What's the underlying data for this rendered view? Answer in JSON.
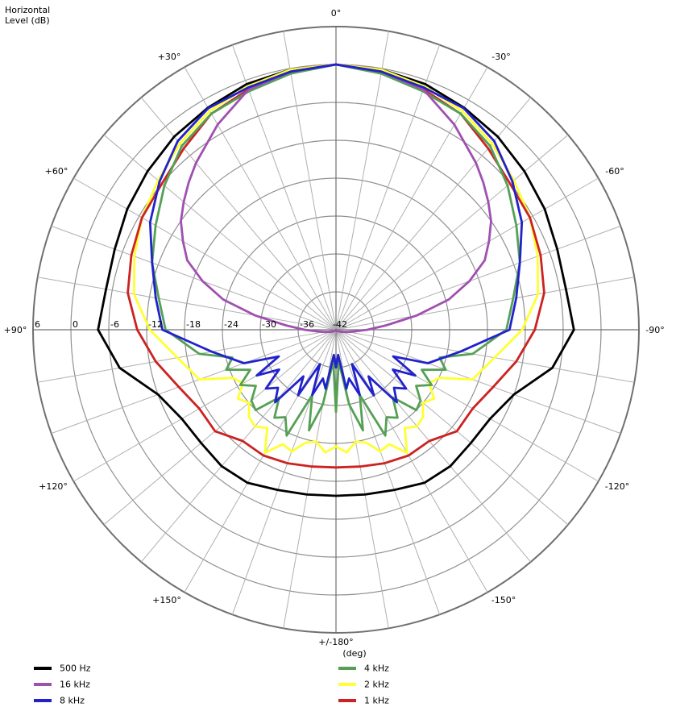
{
  "chart_data": {
    "type": "polar",
    "title": "Horizontal",
    "ylabel": "Level  (dB)",
    "xlabel": "(deg)",
    "r_range": [
      -42,
      6
    ],
    "r_ticks": [
      "6",
      "0",
      "-6",
      "-12",
      "-18",
      "-24",
      "-30",
      "-36",
      "-42"
    ],
    "angle_labels": [
      {
        "deg": 0,
        "label": "0°"
      },
      {
        "deg": 30,
        "label": "-30°"
      },
      {
        "deg": 60,
        "label": "-60°"
      },
      {
        "deg": 90,
        "label": "-90°"
      },
      {
        "deg": 120,
        "label": "-120°"
      },
      {
        "deg": 150,
        "label": "-150°"
      },
      {
        "deg": 180,
        "label": "+/-180°"
      },
      {
        "deg": 210,
        "label": "+150°"
      },
      {
        "deg": 240,
        "label": "+120°"
      },
      {
        "deg": 270,
        "label": "+90°"
      },
      {
        "deg": 300,
        "label": "+60°"
      },
      {
        "deg": 330,
        "label": "+30°"
      }
    ],
    "grid": true,
    "legend_position": "bottom",
    "series": [
      {
        "name": "500 Hz",
        "color": "#000000",
        "angles": [
          0,
          10,
          20,
          30,
          40,
          50,
          60,
          70,
          80,
          90,
          100,
          110,
          120,
          130,
          140,
          150,
          160,
          170,
          180
        ],
        "values": [
          0,
          -0.2,
          -0.6,
          -1.4,
          -2.1,
          -3.0,
          -3.8,
          -4.7,
          -5.0,
          -4.3,
          -7.2,
          -12.0,
          -13.8,
          -14.1,
          -13.8,
          -14.0,
          -15.0,
          -15.5,
          -15.7
        ]
      },
      {
        "name": "8 kHz",
        "color": "#2222cc",
        "angles": [
          0,
          10,
          20,
          30,
          40,
          50,
          60,
          70,
          80,
          90,
          100,
          110,
          115,
          120,
          125,
          130,
          135,
          140,
          145,
          150,
          155,
          160,
          165,
          170,
          175,
          180
        ],
        "values": [
          0,
          -0.5,
          -1.2,
          -1.5,
          -3.0,
          -5.5,
          -8.0,
          -11.0,
          -13.0,
          -14.5,
          -22.0,
          -26.5,
          -32.0,
          -27.5,
          -31.0,
          -27.5,
          -29.0,
          -27.0,
          -33.0,
          -30.0,
          -36.0,
          -31.0,
          -34.0,
          -32.5,
          -38.0,
          -36.0
        ]
      },
      {
        "name": "16 kHz",
        "color": "#a050b0",
        "angles": [
          0,
          10,
          20,
          30,
          40,
          45,
          50,
          55,
          60,
          65,
          70,
          75,
          80,
          85,
          90,
          95,
          100,
          110,
          120,
          150,
          180
        ],
        "values": [
          0,
          -0.5,
          -1.5,
          -4.5,
          -7.5,
          -9.0,
          -10.5,
          -12.0,
          -14.0,
          -16.0,
          -19.5,
          -23.5,
          -29.0,
          -34.0,
          -37.0,
          -39.0,
          -40.0,
          -41.0,
          -41.5,
          -41.8,
          -42.0
        ]
      },
      {
        "name": "4 kHz",
        "color": "#55a055",
        "angles": [
          0,
          10,
          20,
          30,
          40,
          50,
          60,
          70,
          80,
          90,
          100,
          105,
          110,
          115,
          120,
          125,
          130,
          135,
          140,
          145,
          150,
          155,
          160,
          165,
          170,
          175,
          180
        ],
        "values": [
          0,
          -0.8,
          -1.8,
          -2.5,
          -4.0,
          -6.5,
          -9.0,
          -11.0,
          -13.5,
          -15.0,
          -20.0,
          -25.0,
          -23.5,
          -27.0,
          -24.5,
          -26.5,
          -24.5,
          -24.0,
          -28.0,
          -25.0,
          -26.0,
          -23.5,
          -31.0,
          -25.5,
          -30.0,
          -37.0,
          -29.0
        ]
      },
      {
        "name": "2 kHz",
        "color": "#ffff33",
        "angles": [
          0,
          10,
          20,
          30,
          40,
          50,
          60,
          70,
          80,
          90,
          100,
          110,
          115,
          120,
          125,
          130,
          135,
          140,
          145,
          150,
          155,
          160,
          165,
          170,
          175,
          180
        ],
        "values": [
          0,
          -0.2,
          -1.0,
          -2.0,
          -3.5,
          -5.2,
          -6.5,
          -8.0,
          -9.5,
          -12.5,
          -16.5,
          -19.0,
          -24.0,
          -25.0,
          -23.0,
          -24.0,
          -22.5,
          -22.0,
          -23.0,
          -19.5,
          -22.0,
          -21.5,
          -23.5,
          -24.0,
          -22.5,
          -23.5
        ]
      },
      {
        "name": "1 kHz",
        "color": "#cc2222",
        "angles": [
          0,
          10,
          20,
          30,
          40,
          50,
          60,
          70,
          80,
          90,
          100,
          110,
          120,
          130,
          140,
          150,
          160,
          170,
          180
        ],
        "values": [
          0,
          -0.5,
          -1.5,
          -2.5,
          -4.5,
          -6.0,
          -6.5,
          -7.5,
          -8.5,
          -10.5,
          -13.0,
          -15.5,
          -17.0,
          -17.0,
          -19.0,
          -19.0,
          -19.5,
          -20.0,
          -20.2
        ]
      }
    ]
  },
  "legend_items": [
    {
      "label": "500 Hz",
      "color": "#000000"
    },
    {
      "label": "16 kHz",
      "color": "#a050b0"
    },
    {
      "label": "8 kHz",
      "color": "#2222cc"
    },
    {
      "label": "4 kHz",
      "color": "#55a055"
    },
    {
      "label": "2 kHz",
      "color": "#ffff33"
    },
    {
      "label": "1 kHz",
      "color": "#cc2222"
    }
  ]
}
